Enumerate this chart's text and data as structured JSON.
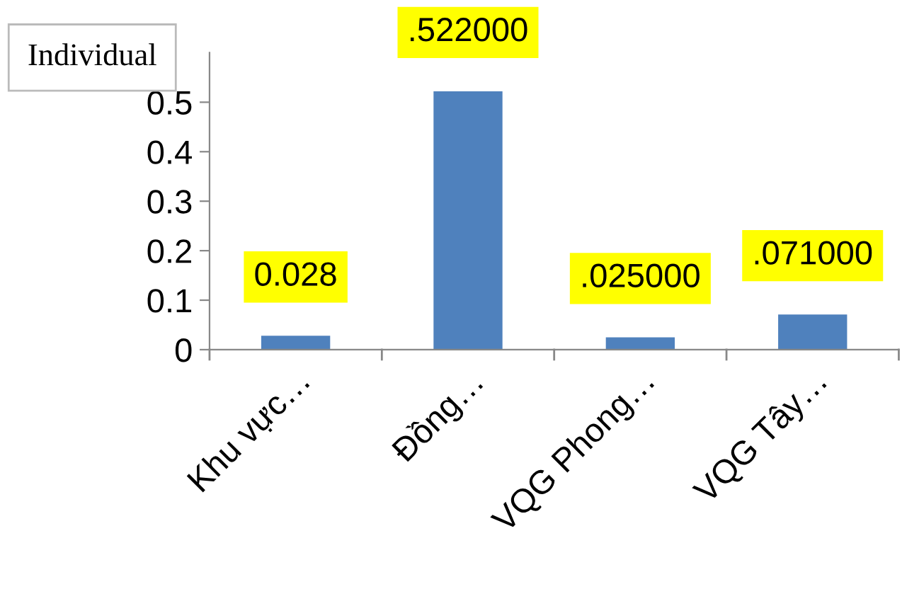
{
  "chart_data": {
    "type": "bar",
    "title": "Individual",
    "categories": [
      "Khu vực…",
      "Đồng…",
      "VQG Phong…",
      "VQG Tây…"
    ],
    "values": [
      0.028,
      0.522,
      0.025,
      0.071
    ],
    "value_labels": [
      "0.028",
      ".522000",
      ".025000",
      ".071000"
    ],
    "color": "#4f81bd",
    "ylim": [
      0,
      0.6
    ],
    "yticks": [
      0,
      0.1,
      0.2,
      0.3,
      0.4,
      0.5
    ],
    "grid": false,
    "legend": false
  }
}
